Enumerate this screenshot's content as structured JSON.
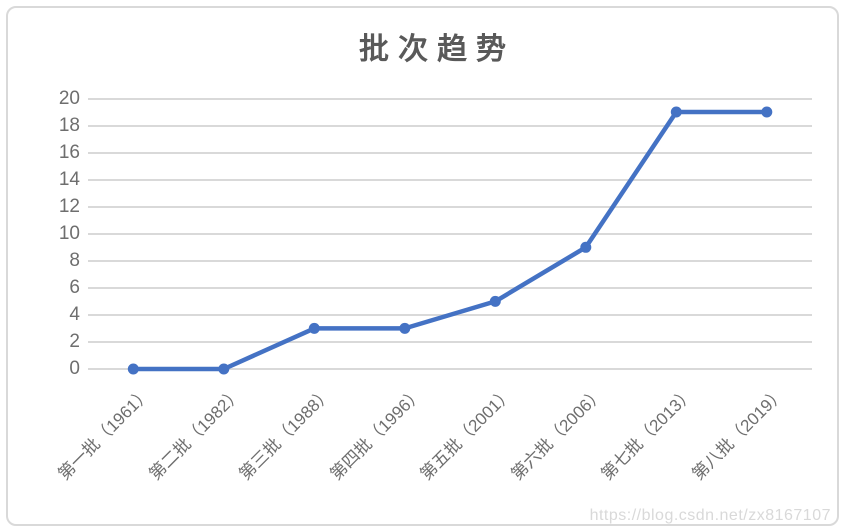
{
  "watermark": "https://blog.csdn.net/zx8167107",
  "chart_data": {
    "type": "line",
    "title": "批次趋势",
    "categories": [
      "第一批（1961）",
      "第二批（1982）",
      "第三批（1988）",
      "第四批（1996）",
      "第五批（2001）",
      "第六批（2006）",
      "第七批（2013）",
      "第八批（2019）"
    ],
    "series": [
      {
        "name": "批次趋势",
        "values": [
          0,
          0,
          3,
          3,
          5,
          9,
          19,
          19
        ]
      }
    ],
    "xlabel": "",
    "ylabel": "",
    "ylim": [
      0,
      20
    ],
    "yticks": [
      0,
      2,
      4,
      6,
      8,
      10,
      12,
      14,
      16,
      18,
      20
    ],
    "grid": true,
    "legend": "none",
    "marker": "circle",
    "line_color": "#4472C4",
    "gridline_color": "#D9D9D9",
    "title_color": "#595959",
    "axis_label_color": "#6E6E6E",
    "x_label_rotation_deg": -45
  }
}
